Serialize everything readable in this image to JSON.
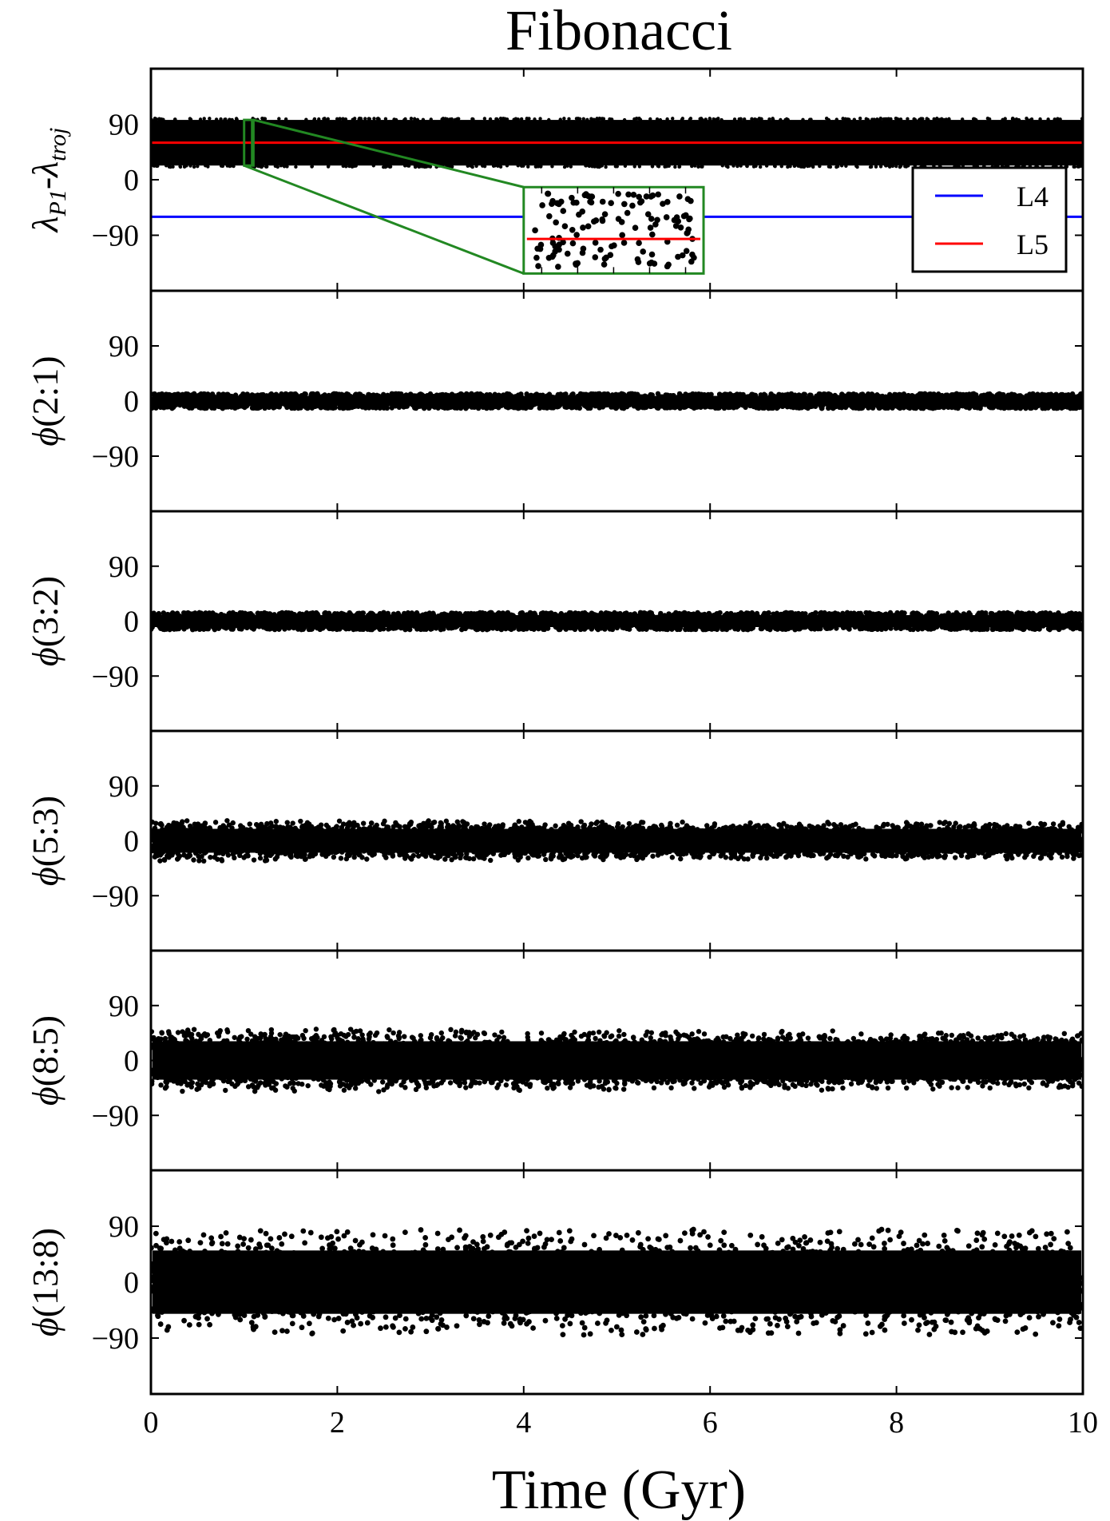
{
  "figure": {
    "title": "Fibonacci",
    "xlabel": "Time (Gyr)",
    "xticks": [
      "0",
      "2",
      "4",
      "6",
      "8",
      "10"
    ],
    "yticks": [
      "90",
      "0",
      "−90"
    ]
  },
  "colors": {
    "L4": "#0000ff",
    "L5": "#ff0000",
    "points": "#000000",
    "inset_frame": "#228822"
  },
  "chart_data": [
    {
      "type": "scatter",
      "ylabel": "λP1-λtroj",
      "ylabel_parts": {
        "base1": "λ",
        "sub1": "P1",
        "mid": "-",
        "base2": "λ",
        "sub2": "troj"
      },
      "xlim": [
        0,
        10
      ],
      "ylim": [
        -180,
        180
      ],
      "yticks": [
        90,
        0,
        -90
      ],
      "points": {
        "center": 60,
        "halfwidth": 37,
        "description_free": true
      },
      "reference_lines": [
        {
          "name": "L4",
          "y": -60
        },
        {
          "name": "L5",
          "y": 60
        }
      ],
      "legend": {
        "entries": [
          "L4",
          "L5"
        ],
        "placement": "lower-right"
      },
      "inset": {
        "zoom_x": [
          1.0,
          1.1
        ],
        "zoom_y": [
          23,
          97
        ],
        "shown_at_x": [
          4.0,
          5.93
        ],
        "shown_at_y": [
          -152,
          -12
        ]
      }
    },
    {
      "type": "scatter",
      "ylabel": "ϕ(2:1)",
      "xlim": [
        0,
        10
      ],
      "ylim": [
        -180,
        180
      ],
      "yticks": [
        90,
        0,
        -90
      ],
      "band": {
        "center": 0,
        "amplitude_start": 12,
        "amplitude_end": 12,
        "oscillation": 0
      }
    },
    {
      "type": "scatter",
      "ylabel": "ϕ(3:2)",
      "xlim": [
        0,
        10
      ],
      "ylim": [
        -180,
        180
      ],
      "yticks": [
        90,
        0,
        -90
      ],
      "band": {
        "center": 0,
        "amplitude_start": 14,
        "amplitude_end": 14,
        "oscillation": 0
      }
    },
    {
      "type": "scatter",
      "ylabel": "ϕ(5:3)",
      "xlim": [
        0,
        10
      ],
      "ylim": [
        -180,
        180
      ],
      "yticks": [
        90,
        0,
        -90
      ],
      "band": {
        "center": 0,
        "amplitude_start": 28,
        "amplitude_end": 24,
        "oscillation": 12
      }
    },
    {
      "type": "scatter",
      "ylabel": "ϕ(8:5)",
      "xlim": [
        0,
        10
      ],
      "ylim": [
        -180,
        180
      ],
      "yticks": [
        90,
        0,
        -90
      ],
      "band": {
        "center": 0,
        "amplitude_start": 45,
        "amplitude_end": 40,
        "oscillation": 15
      }
    },
    {
      "type": "scatter",
      "ylabel": "ϕ(13:8)",
      "xlim": [
        0,
        10
      ],
      "ylim": [
        -180,
        180
      ],
      "yticks": [
        90,
        0,
        -90
      ],
      "band": {
        "center": 0,
        "amplitude_start": 85,
        "amplitude_end": 85,
        "oscillation": 0
      }
    }
  ]
}
